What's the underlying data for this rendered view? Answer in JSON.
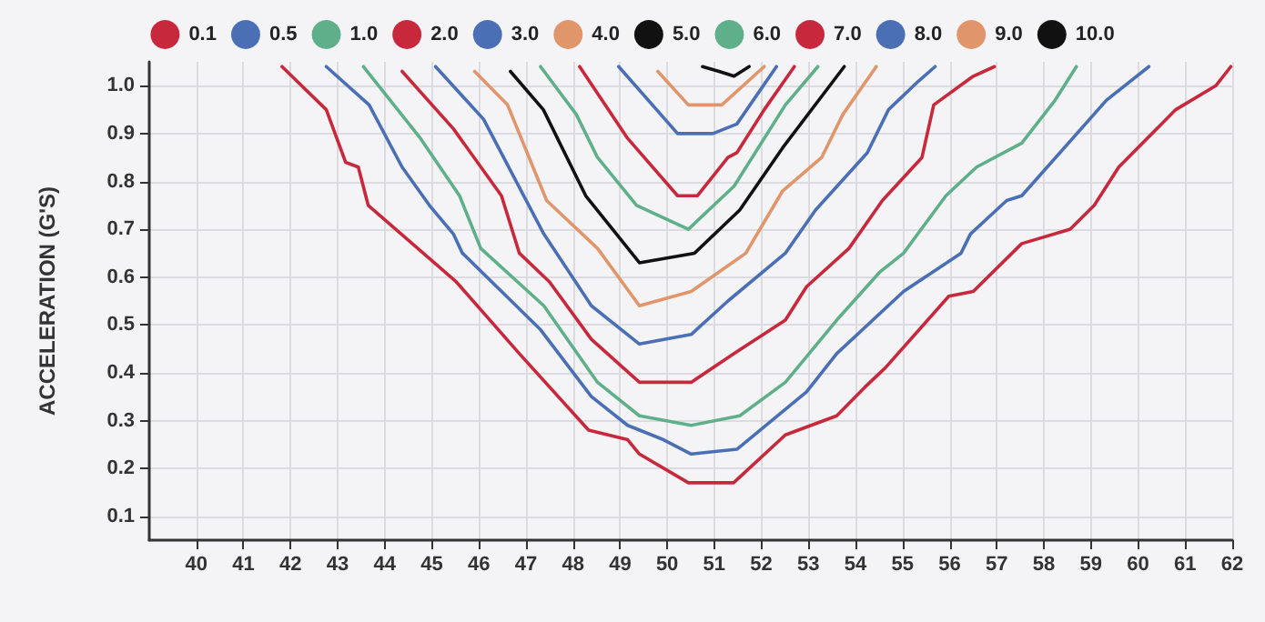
{
  "chart_data": {
    "type": "line",
    "ylabel": "ACCELERATION (G'S)",
    "xlim": [
      39,
      62
    ],
    "ylim": [
      0.05,
      1.05
    ],
    "xticks": [
      40,
      41,
      42,
      43,
      44,
      45,
      46,
      47,
      48,
      49,
      50,
      51,
      52,
      53,
      54,
      55,
      56,
      57,
      58,
      59,
      60,
      61,
      62
    ],
    "yticks": [
      0.1,
      0.2,
      0.3,
      0.4,
      0.5,
      0.6,
      0.7,
      0.8,
      0.9,
      {
        "value": 1,
        "label": "1.0"
      }
    ],
    "grid": true,
    "legend": "top",
    "marker": "none",
    "series": [
      {
        "name": "0.1",
        "color": "#c8283c",
        "x": [
          41.82,
          42.76,
          43.17,
          43.44,
          43.65,
          45.52,
          46.86,
          48.33,
          49.16,
          49.41,
          50.45,
          51.41,
          52.51,
          53.6,
          54.2,
          54.63,
          55.98,
          56.5,
          57.53,
          58.56,
          59.07,
          59.59,
          60.8,
          61.65,
          61.97
        ],
        "values": [
          1.04,
          0.95,
          0.84,
          0.83,
          0.75,
          0.59,
          0.44,
          0.28,
          0.26,
          0.23,
          0.17,
          0.17,
          0.27,
          0.31,
          0.37,
          0.41,
          0.56,
          0.57,
          0.67,
          0.7,
          0.75,
          0.83,
          0.95,
          1.0,
          1.04
        ]
      },
      {
        "name": "0.5",
        "color": "#4a6fb5",
        "x": [
          42.76,
          43.67,
          44.37,
          44.95,
          45.46,
          45.65,
          47.31,
          48.39,
          49.16,
          49.92,
          50.51,
          51.48,
          52.96,
          53.6,
          55.02,
          56.24,
          56.44,
          57.21,
          57.53,
          57.98,
          59.33,
          60.23
        ],
        "values": [
          1.04,
          0.96,
          0.83,
          0.75,
          0.69,
          0.65,
          0.49,
          0.35,
          0.29,
          0.26,
          0.23,
          0.24,
          0.36,
          0.44,
          0.57,
          0.65,
          0.69,
          0.76,
          0.77,
          0.82,
          0.97,
          1.04
        ]
      },
      {
        "name": "1.0",
        "color": "#5fb08a",
        "x": [
          43.55,
          44.76,
          45.59,
          46.04,
          47.38,
          48.52,
          49.41,
          50.51,
          51.54,
          52.51,
          53.6,
          54.51,
          55.02,
          55.92,
          56.57,
          57.53,
          58.24,
          58.69
        ],
        "values": [
          1.04,
          0.89,
          0.77,
          0.66,
          0.54,
          0.38,
          0.31,
          0.29,
          0.31,
          0.38,
          0.51,
          0.61,
          0.65,
          0.77,
          0.83,
          0.88,
          0.97,
          1.04
        ]
      },
      {
        "name": "2.0",
        "color": "#c8283c",
        "x": [
          44.37,
          45.46,
          46.48,
          46.86,
          47.5,
          48.39,
          49.41,
          50.51,
          51.42,
          52.51,
          52.96,
          53.86,
          54.57,
          55.41,
          55.66,
          56.5,
          56.95
        ],
        "values": [
          1.03,
          0.91,
          0.77,
          0.65,
          0.59,
          0.47,
          0.38,
          0.38,
          0.44,
          0.51,
          0.58,
          0.66,
          0.76,
          0.85,
          0.96,
          1.02,
          1.04
        ]
      },
      {
        "name": "3.0",
        "color": "#4a6fb5",
        "x": [
          45.08,
          46.1,
          47.38,
          48.39,
          49.41,
          50.51,
          51.29,
          52.51,
          53.15,
          54.25,
          54.7,
          55.34,
          55.69
        ],
        "values": [
          1.04,
          0.93,
          0.69,
          0.54,
          0.46,
          0.48,
          0.55,
          0.65,
          0.74,
          0.86,
          0.95,
          1.01,
          1.04
        ]
      },
      {
        "name": "4.0",
        "color": "#e0956a",
        "x": [
          45.91,
          46.61,
          47.44,
          48.52,
          49.41,
          50.51,
          51.67,
          52.45,
          53.28,
          53.73,
          54.44
        ],
        "values": [
          1.03,
          0.96,
          0.76,
          0.66,
          0.54,
          0.57,
          0.65,
          0.78,
          0.85,
          0.94,
          1.04
        ]
      },
      {
        "name": "5.0",
        "color": "#111111",
        "x": [
          46.67,
          47.37,
          48.27,
          49.41,
          50.58,
          51.54,
          52.45,
          53.76
        ],
        "values": [
          1.03,
          0.95,
          0.77,
          0.63,
          0.65,
          0.74,
          0.87,
          1.04
        ]
      },
      {
        "name": "6.0",
        "color": "#5fb08a",
        "x": [
          47.31,
          48.07,
          48.52,
          49.35,
          50.45,
          51.42,
          52.51,
          53.2
        ],
        "values": [
          1.04,
          0.94,
          0.85,
          0.75,
          0.7,
          0.79,
          0.96,
          1.04
        ]
      },
      {
        "name": "7.0",
        "color": "#c8283c",
        "x": [
          48.14,
          49.16,
          50.22,
          50.64,
          51.29,
          51.48,
          52.06,
          52.7
        ],
        "values": [
          1.04,
          0.89,
          0.77,
          0.77,
          0.85,
          0.86,
          0.95,
          1.04
        ]
      },
      {
        "name": "8.0",
        "color": "#4a6fb5",
        "x": [
          48.97,
          50.22,
          50.97,
          51.48,
          52.32
        ],
        "values": [
          1.04,
          0.9,
          0.9,
          0.92,
          1.04
        ]
      },
      {
        "name": "9.0",
        "color": "#e0956a",
        "x": [
          49.8,
          50.45,
          51.16,
          52.06
        ],
        "values": [
          1.03,
          0.96,
          0.96,
          1.04
        ]
      },
      {
        "name": "10.0",
        "color": "#111111",
        "x": [
          50.75,
          51.1,
          51.42,
          51.74
        ],
        "values": [
          1.04,
          1.03,
          1.02,
          1.04
        ]
      }
    ]
  }
}
